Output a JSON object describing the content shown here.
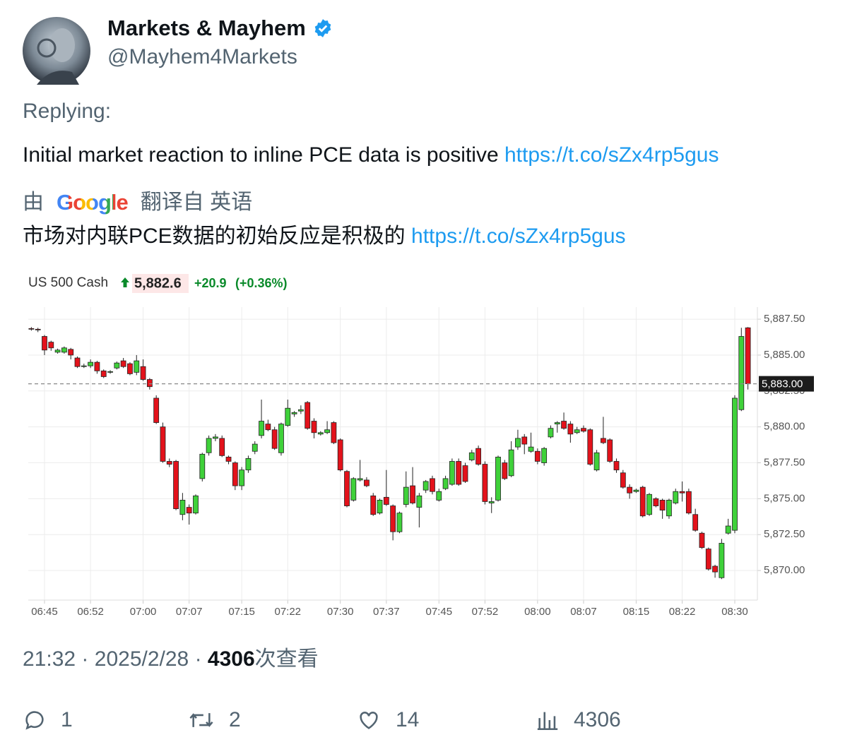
{
  "tweet": {
    "author": {
      "name": "Markets & Mayhem",
      "handle": "@Mayhem4Markets"
    },
    "replying": "Replying:",
    "text": "Initial market reaction to inline PCE data is positive",
    "link": "https://t.co/sZx4rp5gus"
  },
  "translation": {
    "by": "由",
    "provider": "Google",
    "label": "翻译自 英语",
    "text": "市场对内联PCE数据的初始反应是积极的",
    "link": "https://t.co/sZx4rp5gus"
  },
  "footer": {
    "time": "21:32",
    "separator": "·",
    "date": "2025/2/28",
    "views": "4306",
    "views_label": "次查看"
  },
  "actions": {
    "replies": "1",
    "retweets": "2",
    "likes": "14",
    "views": "4306"
  },
  "chart_data": {
    "type": "candlestick",
    "title": "US 500 Cash",
    "price": "5,882.6",
    "change": "+20.9",
    "change_pct": "(+0.36%)",
    "up_color": "#3fd13a",
    "down_color": "#e3121b",
    "grid": true,
    "price_line": {
      "value": 5883,
      "label": "5,883.00"
    },
    "xlim": [
      402.53,
      513.44
    ],
    "xticks": [
      {
        "value": 405,
        "label": "06:45"
      },
      {
        "value": 412,
        "label": "06:52"
      },
      {
        "value": 420,
        "label": "07:00"
      },
      {
        "value": 427,
        "label": "07:07"
      },
      {
        "value": 435,
        "label": "07:15"
      },
      {
        "value": 442,
        "label": "07:22"
      },
      {
        "value": 450,
        "label": "07:30"
      },
      {
        "value": 457,
        "label": "07:37"
      },
      {
        "value": 465,
        "label": "07:45"
      },
      {
        "value": 472,
        "label": "07:52"
      },
      {
        "value": 480,
        "label": "08:00"
      },
      {
        "value": 487,
        "label": "08:07"
      },
      {
        "value": 495,
        "label": "08:15"
      },
      {
        "value": 502,
        "label": "08:22"
      },
      {
        "value": 510,
        "label": "08:30"
      }
    ],
    "ylim": [
      5867.94,
      5888.34
    ],
    "yticks": [
      {
        "value": 5870,
        "label": "5,870.00"
      },
      {
        "value": 5872.5,
        "label": "5,872.50"
      },
      {
        "value": 5875,
        "label": "5,875.00"
      },
      {
        "value": 5877.5,
        "label": "5,877.50"
      },
      {
        "value": 5880,
        "label": "5,880.00"
      },
      {
        "value": 5882.5,
        "label": "5,882.50"
      },
      {
        "value": 5885,
        "label": "5,885.00"
      },
      {
        "value": 5887.5,
        "label": "5,887.50"
      }
    ],
    "x": [
      403,
      404,
      405,
      406,
      407,
      408,
      409,
      410,
      411,
      412,
      413,
      414,
      415,
      416,
      417,
      418,
      419,
      420,
      421,
      422,
      423,
      424,
      425,
      426,
      427,
      428,
      429,
      430,
      431,
      432,
      433,
      434,
      435,
      436,
      437,
      438,
      439,
      440,
      441,
      442,
      443,
      444,
      445,
      446,
      447,
      448,
      449,
      450,
      451,
      452,
      453,
      454,
      455,
      456,
      457,
      458,
      459,
      460,
      461,
      462,
      463,
      464,
      465,
      466,
      467,
      468,
      469,
      470,
      471,
      472,
      473,
      474,
      475,
      476,
      477,
      478,
      479,
      480,
      481,
      482,
      483,
      484,
      485,
      486,
      487,
      488,
      489,
      490,
      491,
      492,
      493,
      494,
      495,
      496,
      497,
      498,
      499,
      500,
      501,
      502,
      503,
      504,
      505,
      506,
      507,
      508,
      509,
      510,
      511,
      512
    ],
    "ohlc": [
      [
        5886.85,
        5886.95,
        5886.7,
        5886.8
      ],
      [
        5886.8,
        5886.9,
        5886.6,
        5886.75
      ],
      [
        5886.3,
        5886.4,
        5885.0,
        5885.35
      ],
      [
        5885.9,
        5886.0,
        5885.3,
        5885.5
      ],
      [
        5885.2,
        5885.45,
        5885.1,
        5885.35
      ],
      [
        5885.2,
        5885.6,
        5885.1,
        5885.5
      ],
      [
        5885.4,
        5885.5,
        5884.7,
        5885.0
      ],
      [
        5884.8,
        5884.9,
        5884.1,
        5884.2
      ],
      [
        5884.2,
        5884.4,
        5884.1,
        5884.25
      ],
      [
        5884.25,
        5884.7,
        5884.1,
        5884.5
      ],
      [
        5884.5,
        5884.6,
        5883.7,
        5883.9
      ],
      [
        5883.9,
        5884.0,
        5883.4,
        5883.5
      ],
      [
        5883.8,
        5883.95,
        5883.7,
        5883.85
      ],
      [
        5884.1,
        5884.55,
        5884.0,
        5884.45
      ],
      [
        5884.6,
        5884.8,
        5884.1,
        5884.2
      ],
      [
        5884.4,
        5884.5,
        5883.6,
        5883.7
      ],
      [
        5883.8,
        5885.0,
        5883.6,
        5884.6
      ],
      [
        5884.2,
        5884.7,
        5883.2,
        5883.3
      ],
      [
        5883.3,
        5883.4,
        5882.6,
        5882.8
      ],
      [
        5882.0,
        5882.2,
        5880.2,
        5880.3
      ],
      [
        5880.0,
        5880.3,
        5877.5,
        5877.6
      ],
      [
        5877.6,
        5877.8,
        5877.2,
        5877.4
      ],
      [
        5877.6,
        5877.7,
        5874.2,
        5874.3
      ],
      [
        5873.9,
        5875.4,
        5873.5,
        5874.9
      ],
      [
        5874.4,
        5874.6,
        5873.2,
        5874.0
      ],
      [
        5874.0,
        5875.3,
        5873.9,
        5875.2
      ],
      [
        5876.4,
        5878.2,
        5876.2,
        5878.1
      ],
      [
        5878.2,
        5879.4,
        5878.0,
        5879.2
      ],
      [
        5879.2,
        5879.5,
        5879.0,
        5879.3
      ],
      [
        5879.2,
        5879.4,
        5877.9,
        5878.0
      ],
      [
        5877.9,
        5878.0,
        5877.4,
        5877.6
      ],
      [
        5877.5,
        5877.6,
        5875.6,
        5875.9
      ],
      [
        5875.9,
        5877.2,
        5875.6,
        5877.0
      ],
      [
        5877.0,
        5878.0,
        5876.8,
        5877.8
      ],
      [
        5878.3,
        5879.0,
        5878.1,
        5878.8
      ],
      [
        5879.4,
        5881.9,
        5879.2,
        5880.4
      ],
      [
        5880.2,
        5880.5,
        5879.7,
        5879.8
      ],
      [
        5879.8,
        5880.0,
        5878.4,
        5878.5
      ],
      [
        5878.2,
        5880.3,
        5878.0,
        5880.2
      ],
      [
        5880.1,
        5881.9,
        5880.0,
        5881.3
      ],
      [
        5880.9,
        5881.1,
        5880.7,
        5881.0
      ],
      [
        5881.1,
        5881.5,
        5880.9,
        5881.2
      ],
      [
        5881.7,
        5881.8,
        5879.8,
        5879.9
      ],
      [
        5880.4,
        5880.6,
        5879.2,
        5879.6
      ],
      [
        5879.5,
        5879.7,
        5879.4,
        5879.6
      ],
      [
        5879.6,
        5880.4,
        5879.5,
        5879.8
      ],
      [
        5880.3,
        5880.4,
        5878.8,
        5878.9
      ],
      [
        5879.1,
        5879.2,
        5876.9,
        5877.0
      ],
      [
        5876.9,
        5877.0,
        5874.4,
        5874.5
      ],
      [
        5874.9,
        5876.5,
        5874.8,
        5876.4
      ],
      [
        5876.3,
        5877.7,
        5876.2,
        5876.4
      ],
      [
        5876.3,
        5876.5,
        5875.8,
        5875.9
      ],
      [
        5875.2,
        5875.4,
        5873.8,
        5873.9
      ],
      [
        5874.0,
        5875.0,
        5873.9,
        5874.9
      ],
      [
        5875.1,
        5877.0,
        5874.5,
        5874.6
      ],
      [
        5874.5,
        5874.6,
        5872.1,
        5872.7
      ],
      [
        5872.7,
        5874.1,
        5872.6,
        5874.0
      ],
      [
        5874.6,
        5876.9,
        5874.4,
        5875.8
      ],
      [
        5875.9,
        5877.2,
        5874.6,
        5874.7
      ],
      [
        5874.4,
        5875.4,
        5873.0,
        5875.2
      ],
      [
        5875.6,
        5876.3,
        5875.4,
        5876.2
      ],
      [
        5876.4,
        5876.6,
        5875.3,
        5875.5
      ],
      [
        5874.9,
        5875.7,
        5874.8,
        5875.5
      ],
      [
        5875.7,
        5876.6,
        5875.6,
        5876.4
      ],
      [
        5876.0,
        5877.8,
        5875.9,
        5877.6
      ],
      [
        5877.6,
        5877.8,
        5875.9,
        5876.0
      ],
      [
        5877.3,
        5877.5,
        5876.1,
        5876.2
      ],
      [
        5877.7,
        5878.4,
        5877.6,
        5878.2
      ],
      [
        5878.5,
        5878.7,
        5877.3,
        5877.4
      ],
      [
        5877.4,
        5877.6,
        5874.6,
        5874.8
      ],
      [
        5874.7,
        5875.1,
        5874.0,
        5874.8
      ],
      [
        5874.9,
        5878.0,
        5874.8,
        5877.9
      ],
      [
        5877.5,
        5877.7,
        5876.3,
        5876.4
      ],
      [
        5876.6,
        5879.0,
        5876.5,
        5878.4
      ],
      [
        5878.6,
        5879.8,
        5878.4,
        5879.2
      ],
      [
        5879.3,
        5879.5,
        5878.1,
        5878.8
      ],
      [
        5878.3,
        5879.6,
        5878.2,
        5878.6
      ],
      [
        5878.3,
        5878.5,
        5877.4,
        5877.6
      ],
      [
        5877.5,
        5878.6,
        5877.3,
        5878.5
      ],
      [
        5879.3,
        5880.1,
        5879.2,
        5879.9
      ],
      [
        5880.2,
        5880.4,
        5879.6,
        5880.3
      ],
      [
        5880.4,
        5881.0,
        5879.8,
        5879.9
      ],
      [
        5880.2,
        5880.4,
        5878.9,
        5879.5
      ],
      [
        5879.6,
        5880.0,
        5879.5,
        5879.8
      ],
      [
        5879.9,
        5880.1,
        5879.6,
        5879.7
      ],
      [
        5879.8,
        5879.9,
        5877.3,
        5877.4
      ],
      [
        5877.0,
        5878.4,
        5876.9,
        5878.2
      ],
      [
        5879.2,
        5880.7,
        5878.8,
        5878.9
      ],
      [
        5879.1,
        5879.2,
        5877.5,
        5877.6
      ],
      [
        5877.6,
        5877.8,
        5876.8,
        5877.0
      ],
      [
        5876.8,
        5877.0,
        5875.7,
        5875.8
      ],
      [
        5875.8,
        5876.0,
        5875.0,
        5875.4
      ],
      [
        5875.5,
        5875.7,
        5875.4,
        5875.6
      ],
      [
        5875.8,
        5875.9,
        5873.7,
        5873.8
      ],
      [
        5873.9,
        5875.4,
        5873.8,
        5875.3
      ],
      [
        5875.0,
        5875.1,
        5874.4,
        5874.5
      ],
      [
        5874.9,
        5875.0,
        5873.6,
        5874.2
      ],
      [
        5873.8,
        5875.0,
        5873.6,
        5874.9
      ],
      [
        5874.7,
        5875.7,
        5874.6,
        5875.5
      ],
      [
        5875.5,
        5876.2,
        5874.8,
        5875.4
      ],
      [
        5875.5,
        5875.7,
        5873.9,
        5874.0
      ],
      [
        5873.9,
        5874.3,
        5872.7,
        5872.8
      ],
      [
        5872.6,
        5872.7,
        5871.5,
        5871.6
      ],
      [
        5871.5,
        5871.6,
        5870.0,
        5870.1
      ],
      [
        5870.3,
        5870.4,
        5869.5,
        5869.9
      ],
      [
        5869.5,
        5872.2,
        5869.4,
        5871.9
      ],
      [
        5872.6,
        5873.6,
        5872.5,
        5873.1
      ],
      [
        5872.8,
        5882.2,
        5872.6,
        5882.0
      ],
      [
        5881.2,
        5886.9,
        5881.1,
        5886.3
      ],
      [
        5886.9,
        5886.95,
        5882.6,
        5883.0
      ]
    ]
  }
}
